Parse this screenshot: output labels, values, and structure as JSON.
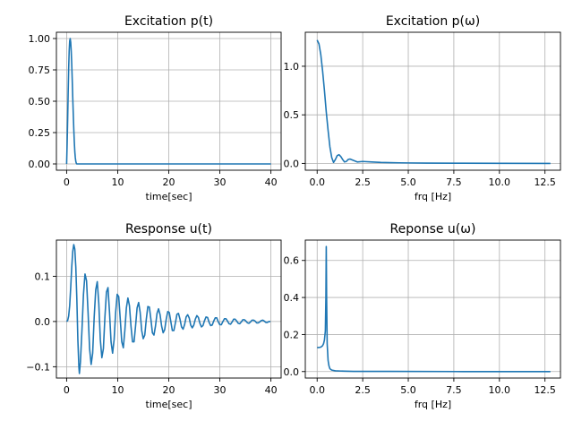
{
  "chart_data": [
    {
      "type": "line",
      "title": "Excitation p(t)",
      "xlabel": "time[sec]",
      "ylabel": "",
      "xlim": [
        -2,
        42
      ],
      "ylim": [
        -0.05,
        1.05
      ],
      "xticks": [
        0,
        10,
        20,
        30,
        40
      ],
      "xticklabels": [
        "0",
        "10",
        "20",
        "30",
        "40"
      ],
      "yticks": [
        0,
        0.25,
        0.5,
        0.75,
        1.0
      ],
      "yticklabels": [
        "0.00",
        "0.25",
        "0.50",
        "0.75",
        "1.00"
      ],
      "grid": true,
      "color": "#1f77b4",
      "x": [
        0,
        0.1,
        0.2,
        0.3,
        0.4,
        0.5,
        0.6,
        0.7,
        0.8,
        0.9,
        1.0,
        1.1,
        1.2,
        1.3,
        1.4,
        1.5,
        1.6,
        1.7,
        1.8,
        1.9,
        2.0,
        40
      ],
      "y": [
        0,
        0.16,
        0.35,
        0.57,
        0.76,
        0.9,
        0.98,
        1.0,
        0.97,
        0.9,
        0.8,
        0.67,
        0.53,
        0.4,
        0.28,
        0.18,
        0.1,
        0.05,
        0.02,
        0.005,
        0,
        0
      ]
    },
    {
      "type": "line",
      "title": "Excitation p(ω)",
      "xlabel": "frq [Hz]",
      "ylabel": "",
      "xlim": [
        -0.65,
        13.35
      ],
      "ylim": [
        -0.07,
        1.35
      ],
      "xticks": [
        0,
        2.5,
        5,
        7.5,
        10,
        12.5
      ],
      "xticklabels": [
        "0.0",
        "2.5",
        "5.0",
        "7.5",
        "10.0",
        "12.5"
      ],
      "yticks": [
        0,
        0.5,
        1.0
      ],
      "yticklabels": [
        "0.0",
        "0.5",
        "1.0"
      ],
      "grid": true,
      "color": "#1f77b4",
      "x": [
        0,
        0.1,
        0.2,
        0.3,
        0.4,
        0.5,
        0.6,
        0.7,
        0.8,
        0.9,
        1.0,
        1.1,
        1.2,
        1.3,
        1.4,
        1.5,
        1.6,
        1.7,
        1.8,
        2.0,
        2.2,
        2.5,
        3.0,
        3.5,
        4.0,
        4.5,
        5.0,
        6.0,
        8.0,
        10.0,
        12.8
      ],
      "y": [
        1.27,
        1.23,
        1.12,
        0.95,
        0.75,
        0.53,
        0.34,
        0.17,
        0.06,
        0.01,
        0.04,
        0.08,
        0.09,
        0.07,
        0.04,
        0.015,
        0.02,
        0.04,
        0.045,
        0.03,
        0.015,
        0.02,
        0.015,
        0.01,
        0.008,
        0.006,
        0.005,
        0.003,
        0.002,
        0.001,
        0.0
      ]
    },
    {
      "type": "line",
      "title": "Response u(t)",
      "xlabel": "time[sec]",
      "ylabel": "",
      "xlim": [
        -2,
        42
      ],
      "ylim": [
        -0.125,
        0.18
      ],
      "xticks": [
        0,
        10,
        20,
        30,
        40
      ],
      "xticklabels": [
        "0",
        "10",
        "20",
        "30",
        "40"
      ],
      "yticks": [
        -0.1,
        0,
        0.1
      ],
      "yticklabels": [
        "−0.1",
        "0.0",
        "0.1"
      ],
      "grid": true,
      "color": "#1f77b4",
      "x": [
        0,
        0.2,
        0.4,
        0.6,
        0.8,
        1.0,
        1.2,
        1.4,
        1.6,
        1.8,
        2.0,
        2.2,
        2.4,
        2.5,
        2.7,
        3.0,
        3.3,
        3.6,
        3.9,
        4.2,
        4.5,
        4.8,
        5.1,
        5.4,
        5.7,
        6.0,
        6.3,
        6.6,
        6.9,
        7.2,
        7.5,
        7.8,
        8.1,
        8.4,
        8.7,
        9.0,
        9.3,
        9.6,
        9.9,
        10.2,
        10.5,
        10.8,
        11.1,
        11.4,
        11.7,
        12.0,
        12.3,
        12.6,
        12.9,
        13.2,
        13.5,
        13.8,
        14.1,
        14.4,
        14.7,
        15.0,
        15.3,
        15.6,
        15.9,
        16.2,
        16.5,
        16.8,
        17.1,
        17.4,
        17.7,
        18.0,
        18.3,
        18.6,
        18.9,
        19.2,
        19.5,
        19.8,
        20.1,
        20.4,
        20.7,
        21.0,
        21.3,
        21.6,
        21.9,
        22.2,
        22.5,
        22.8,
        23.1,
        23.4,
        23.7,
        24.0,
        24.3,
        24.6,
        24.9,
        25.2,
        25.5,
        25.8,
        26.1,
        26.4,
        26.7,
        27.0,
        27.3,
        27.6,
        27.9,
        28.2,
        28.5,
        28.8,
        29.1,
        29.4,
        29.7,
        30.0,
        30.3,
        30.6,
        30.9,
        31.2,
        31.5,
        31.8,
        32.1,
        32.4,
        32.7,
        33.0,
        33.3,
        33.6,
        33.9,
        34.2,
        34.5,
        34.8,
        35.1,
        35.4,
        35.7,
        36.0,
        36.3,
        36.6,
        36.9,
        37.2,
        37.5,
        37.8,
        38.1,
        38.4,
        38.7,
        39.0,
        39.3,
        39.6,
        39.9
      ],
      "y": [
        0,
        0.002,
        0.012,
        0.035,
        0.075,
        0.12,
        0.155,
        0.17,
        0.16,
        0.12,
        0.05,
        -0.04,
        -0.1,
        -0.115,
        -0.09,
        -0.02,
        0.06,
        0.105,
        0.09,
        0.02,
        -0.06,
        -0.095,
        -0.07,
        0.01,
        0.07,
        0.088,
        0.04,
        -0.04,
        -0.08,
        -0.06,
        0.01,
        0.065,
        0.075,
        0.02,
        -0.045,
        -0.07,
        -0.04,
        0.02,
        0.06,
        0.055,
        0.005,
        -0.045,
        -0.058,
        -0.02,
        0.03,
        0.052,
        0.035,
        -0.01,
        -0.045,
        -0.045,
        -0.01,
        0.03,
        0.042,
        0.02,
        -0.02,
        -0.038,
        -0.03,
        0.005,
        0.033,
        0.032,
        0.005,
        -0.025,
        -0.03,
        -0.01,
        0.018,
        0.028,
        0.015,
        -0.01,
        -0.025,
        -0.018,
        0.005,
        0.022,
        0.02,
        0.0,
        -0.02,
        -0.02,
        -0.003,
        0.016,
        0.018,
        0.005,
        -0.012,
        -0.017,
        -0.007,
        0.01,
        0.015,
        0.008,
        -0.008,
        -0.014,
        -0.008,
        0.005,
        0.013,
        0.009,
        -0.004,
        -0.012,
        -0.009,
        0.002,
        0.01,
        0.009,
        -0.002,
        -0.009,
        -0.008,
        0.001,
        0.008,
        0.008,
        -0.001,
        -0.007,
        -0.007,
        0.0,
        0.006,
        0.006,
        0.001,
        -0.005,
        -0.006,
        -0.001,
        0.005,
        0.005,
        0.001,
        -0.004,
        -0.005,
        -0.001,
        0.004,
        0.004,
        0.001,
        -0.003,
        -0.004,
        -0.001,
        0.003,
        0.003,
        0.001,
        -0.003,
        -0.003,
        -0.001,
        0.002,
        0.003,
        0.001,
        -0.002,
        -0.002,
        0.0,
        0.0
      ]
    },
    {
      "type": "line",
      "title": "Reponse u(ω)",
      "xlabel": "frq [Hz]",
      "ylabel": "",
      "xlim": [
        -0.65,
        13.35
      ],
      "ylim": [
        -0.035,
        0.71
      ],
      "xticks": [
        0,
        2.5,
        5,
        7.5,
        10,
        12.5
      ],
      "xticklabels": [
        "0.0",
        "2.5",
        "5.0",
        "7.5",
        "10.0",
        "12.5"
      ],
      "yticks": [
        0,
        0.2,
        0.4,
        0.6
      ],
      "yticklabels": [
        "0.0",
        "0.2",
        "0.4",
        "0.6"
      ],
      "grid": true,
      "color": "#1f77b4",
      "x": [
        0,
        0.1,
        0.2,
        0.3,
        0.35,
        0.4,
        0.45,
        0.48,
        0.5,
        0.52,
        0.55,
        0.6,
        0.65,
        0.7,
        0.8,
        1.0,
        1.5,
        2.0,
        4.0,
        8.0,
        12.8
      ],
      "y": [
        0.13,
        0.13,
        0.132,
        0.14,
        0.15,
        0.17,
        0.22,
        0.4,
        0.675,
        0.4,
        0.15,
        0.06,
        0.03,
        0.015,
        0.008,
        0.004,
        0.002,
        0.001,
        0.001,
        0.0,
        0.0
      ]
    }
  ]
}
